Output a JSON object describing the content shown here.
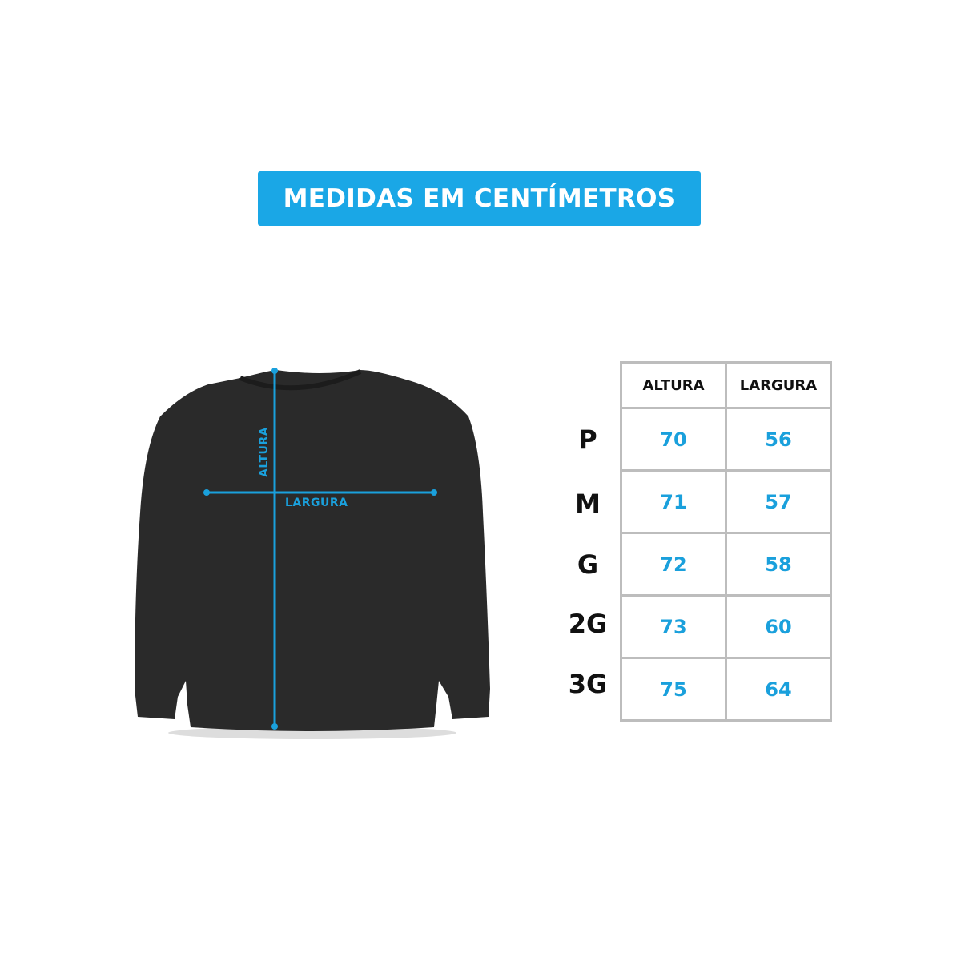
{
  "banner": {
    "title": "MEDIDAS EM CENTÍMETROS",
    "color": "#1aa7e6"
  },
  "illustration": {
    "garment": "black crewneck sweatshirt",
    "labels": {
      "height": "ALTURA",
      "width": "LARGURA"
    },
    "line_color": "#1aa0dc"
  },
  "size_table": {
    "columns": [
      "ALTURA",
      "LARGURA"
    ],
    "rows": [
      {
        "size": "P",
        "altura": "70",
        "largura": "56"
      },
      {
        "size": "M",
        "altura": "71",
        "largura": "57"
      },
      {
        "size": "G",
        "altura": "72",
        "largura": "58"
      },
      {
        "size": "2G",
        "altura": "73",
        "largura": "60"
      },
      {
        "size": "3G",
        "altura": "75",
        "largura": "64"
      }
    ]
  }
}
